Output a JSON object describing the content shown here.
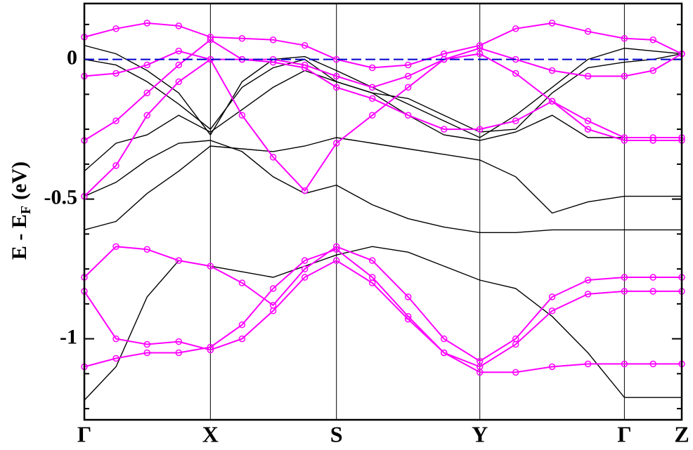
{
  "chart_data": {
    "type": "line",
    "ylabel": "E - E",
    "ylabel_sub": "F",
    "ylabel_suffix": "(eV)",
    "x": [
      0,
      0.053,
      0.105,
      0.158,
      0.211,
      0.264,
      0.316,
      0.369,
      0.422,
      0.482,
      0.542,
      0.602,
      0.662,
      0.722,
      0.783,
      0.843,
      0.904,
      0.952,
      1.0
    ],
    "xlim": [
      0,
      1.0
    ],
    "xticks": [
      {
        "value": 0,
        "label": "Γ"
      },
      {
        "value": 0.211,
        "label": "X"
      },
      {
        "value": 0.422,
        "label": "S"
      },
      {
        "value": 0.662,
        "label": "Y"
      },
      {
        "value": 0.904,
        "label": "Γ"
      },
      {
        "value": 1.0,
        "label": "Z"
      }
    ],
    "ylim": [
      -1.29,
      0.2
    ],
    "yticks": [
      0,
      -0.5,
      -1
    ],
    "yticks_minor": [
      0.125,
      -0.125,
      -0.25,
      -0.375,
      -0.625,
      -0.75,
      -0.875,
      -1.125,
      -1.25
    ],
    "grid": true,
    "fermi_level": 0,
    "fermi_color": "#0000cd",
    "series": [
      {
        "color": "#000000",
        "markers": false,
        "values": [
          -1.22,
          -1.1,
          -0.85,
          -0.72,
          -0.74,
          -0.76,
          -0.78,
          -0.74,
          -0.7,
          -0.67,
          -0.69,
          -0.74,
          -0.79,
          -0.82,
          -0.92,
          -1.05,
          -1.21,
          -1.21,
          -1.21
        ]
      },
      {
        "color": "#000000",
        "markers": false,
        "values": [
          -0.61,
          -0.58,
          -0.48,
          -0.4,
          -0.31,
          -0.32,
          -0.33,
          -0.31,
          -0.28,
          -0.3,
          -0.32,
          -0.34,
          -0.36,
          -0.42,
          -0.55,
          -0.51,
          -0.49,
          -0.49,
          -0.49
        ]
      },
      {
        "color": "#000000",
        "markers": false,
        "values": [
          -0.49,
          -0.44,
          -0.36,
          -0.3,
          -0.29,
          -0.33,
          -0.42,
          -0.48,
          -0.45,
          -0.52,
          -0.57,
          -0.6,
          -0.62,
          -0.62,
          -0.61,
          -0.61,
          -0.61,
          -0.61,
          -0.61
        ]
      },
      {
        "color": "#000000",
        "markers": false,
        "values": [
          -0.4,
          -0.3,
          -0.27,
          -0.2,
          -0.26,
          -0.18,
          -0.1,
          -0.04,
          -0.08,
          -0.12,
          -0.2,
          -0.27,
          -0.29,
          -0.26,
          -0.2,
          -0.28,
          -0.28,
          -0.28,
          -0.28
        ]
      },
      {
        "color": "#000000",
        "markers": false,
        "values": [
          0.05,
          0.02,
          -0.04,
          -0.12,
          -0.27,
          -0.08,
          0.0,
          0.01,
          -0.04,
          -0.1,
          -0.16,
          -0.22,
          -0.28,
          -0.2,
          -0.1,
          0.0,
          0.04,
          0.03,
          0.02
        ]
      },
      {
        "color": "#000000",
        "markers": false,
        "values": [
          0.0,
          -0.02,
          -0.08,
          -0.16,
          -0.25,
          -0.1,
          -0.03,
          0.0,
          -0.08,
          -0.12,
          -0.14,
          -0.2,
          -0.26,
          -0.25,
          -0.12,
          -0.03,
          -0.01,
          0.0,
          0.02
        ]
      },
      {
        "color": "#ff00ff",
        "markers": true,
        "values": [
          0.08,
          0.11,
          0.13,
          0.12,
          0.08,
          0.075,
          0.07,
          0.05,
          0.0,
          -0.03,
          -0.02,
          0.02,
          0.05,
          0.11,
          0.13,
          0.1,
          0.075,
          0.07,
          0.02
        ]
      },
      {
        "color": "#ff00ff",
        "markers": true,
        "values": [
          -0.06,
          -0.05,
          -0.02,
          0.03,
          0.0,
          0.0,
          0.0,
          -0.02,
          -0.06,
          -0.1,
          -0.06,
          0.0,
          0.04,
          0.0,
          -0.04,
          -0.06,
          -0.06,
          -0.04,
          0.02
        ]
      },
      {
        "color": "#ff00ff",
        "markers": true,
        "values": [
          -0.29,
          -0.22,
          -0.12,
          -0.02,
          0.07,
          0.0,
          -0.01,
          -0.03,
          -0.1,
          -0.14,
          -0.2,
          -0.25,
          -0.25,
          -0.22,
          -0.15,
          -0.25,
          -0.29,
          -0.29,
          -0.29
        ]
      },
      {
        "color": "#ff00ff",
        "markers": true,
        "values": [
          -0.49,
          -0.38,
          -0.2,
          -0.08,
          0.0,
          -0.2,
          -0.35,
          -0.47,
          -0.3,
          -0.2,
          -0.1,
          0.0,
          0.02,
          -0.05,
          -0.15,
          -0.22,
          -0.28,
          -0.28,
          -0.28
        ]
      },
      {
        "color": "#ff00ff",
        "markers": true,
        "values": [
          -0.78,
          -0.67,
          -0.68,
          -0.72,
          -0.74,
          -0.8,
          -0.88,
          -0.75,
          -0.67,
          -0.72,
          -0.85,
          -1.0,
          -1.08,
          -1.0,
          -0.85,
          -0.79,
          -0.78,
          -0.78,
          -0.78
        ]
      },
      {
        "color": "#ff00ff",
        "markers": true,
        "values": [
          -0.83,
          -1.0,
          -1.02,
          -1.01,
          -1.04,
          -1.0,
          -0.9,
          -0.78,
          -0.72,
          -0.8,
          -0.93,
          -1.05,
          -1.1,
          -1.02,
          -0.9,
          -0.84,
          -0.83,
          -0.83,
          -0.83
        ]
      },
      {
        "color": "#ff00ff",
        "markers": true,
        "values": [
          -1.1,
          -1.07,
          -1.05,
          -1.05,
          -1.03,
          -0.95,
          -0.82,
          -0.72,
          -0.68,
          -0.78,
          -0.92,
          -1.05,
          -1.12,
          -1.12,
          -1.1,
          -1.09,
          -1.09,
          -1.09,
          -1.09
        ]
      }
    ]
  }
}
